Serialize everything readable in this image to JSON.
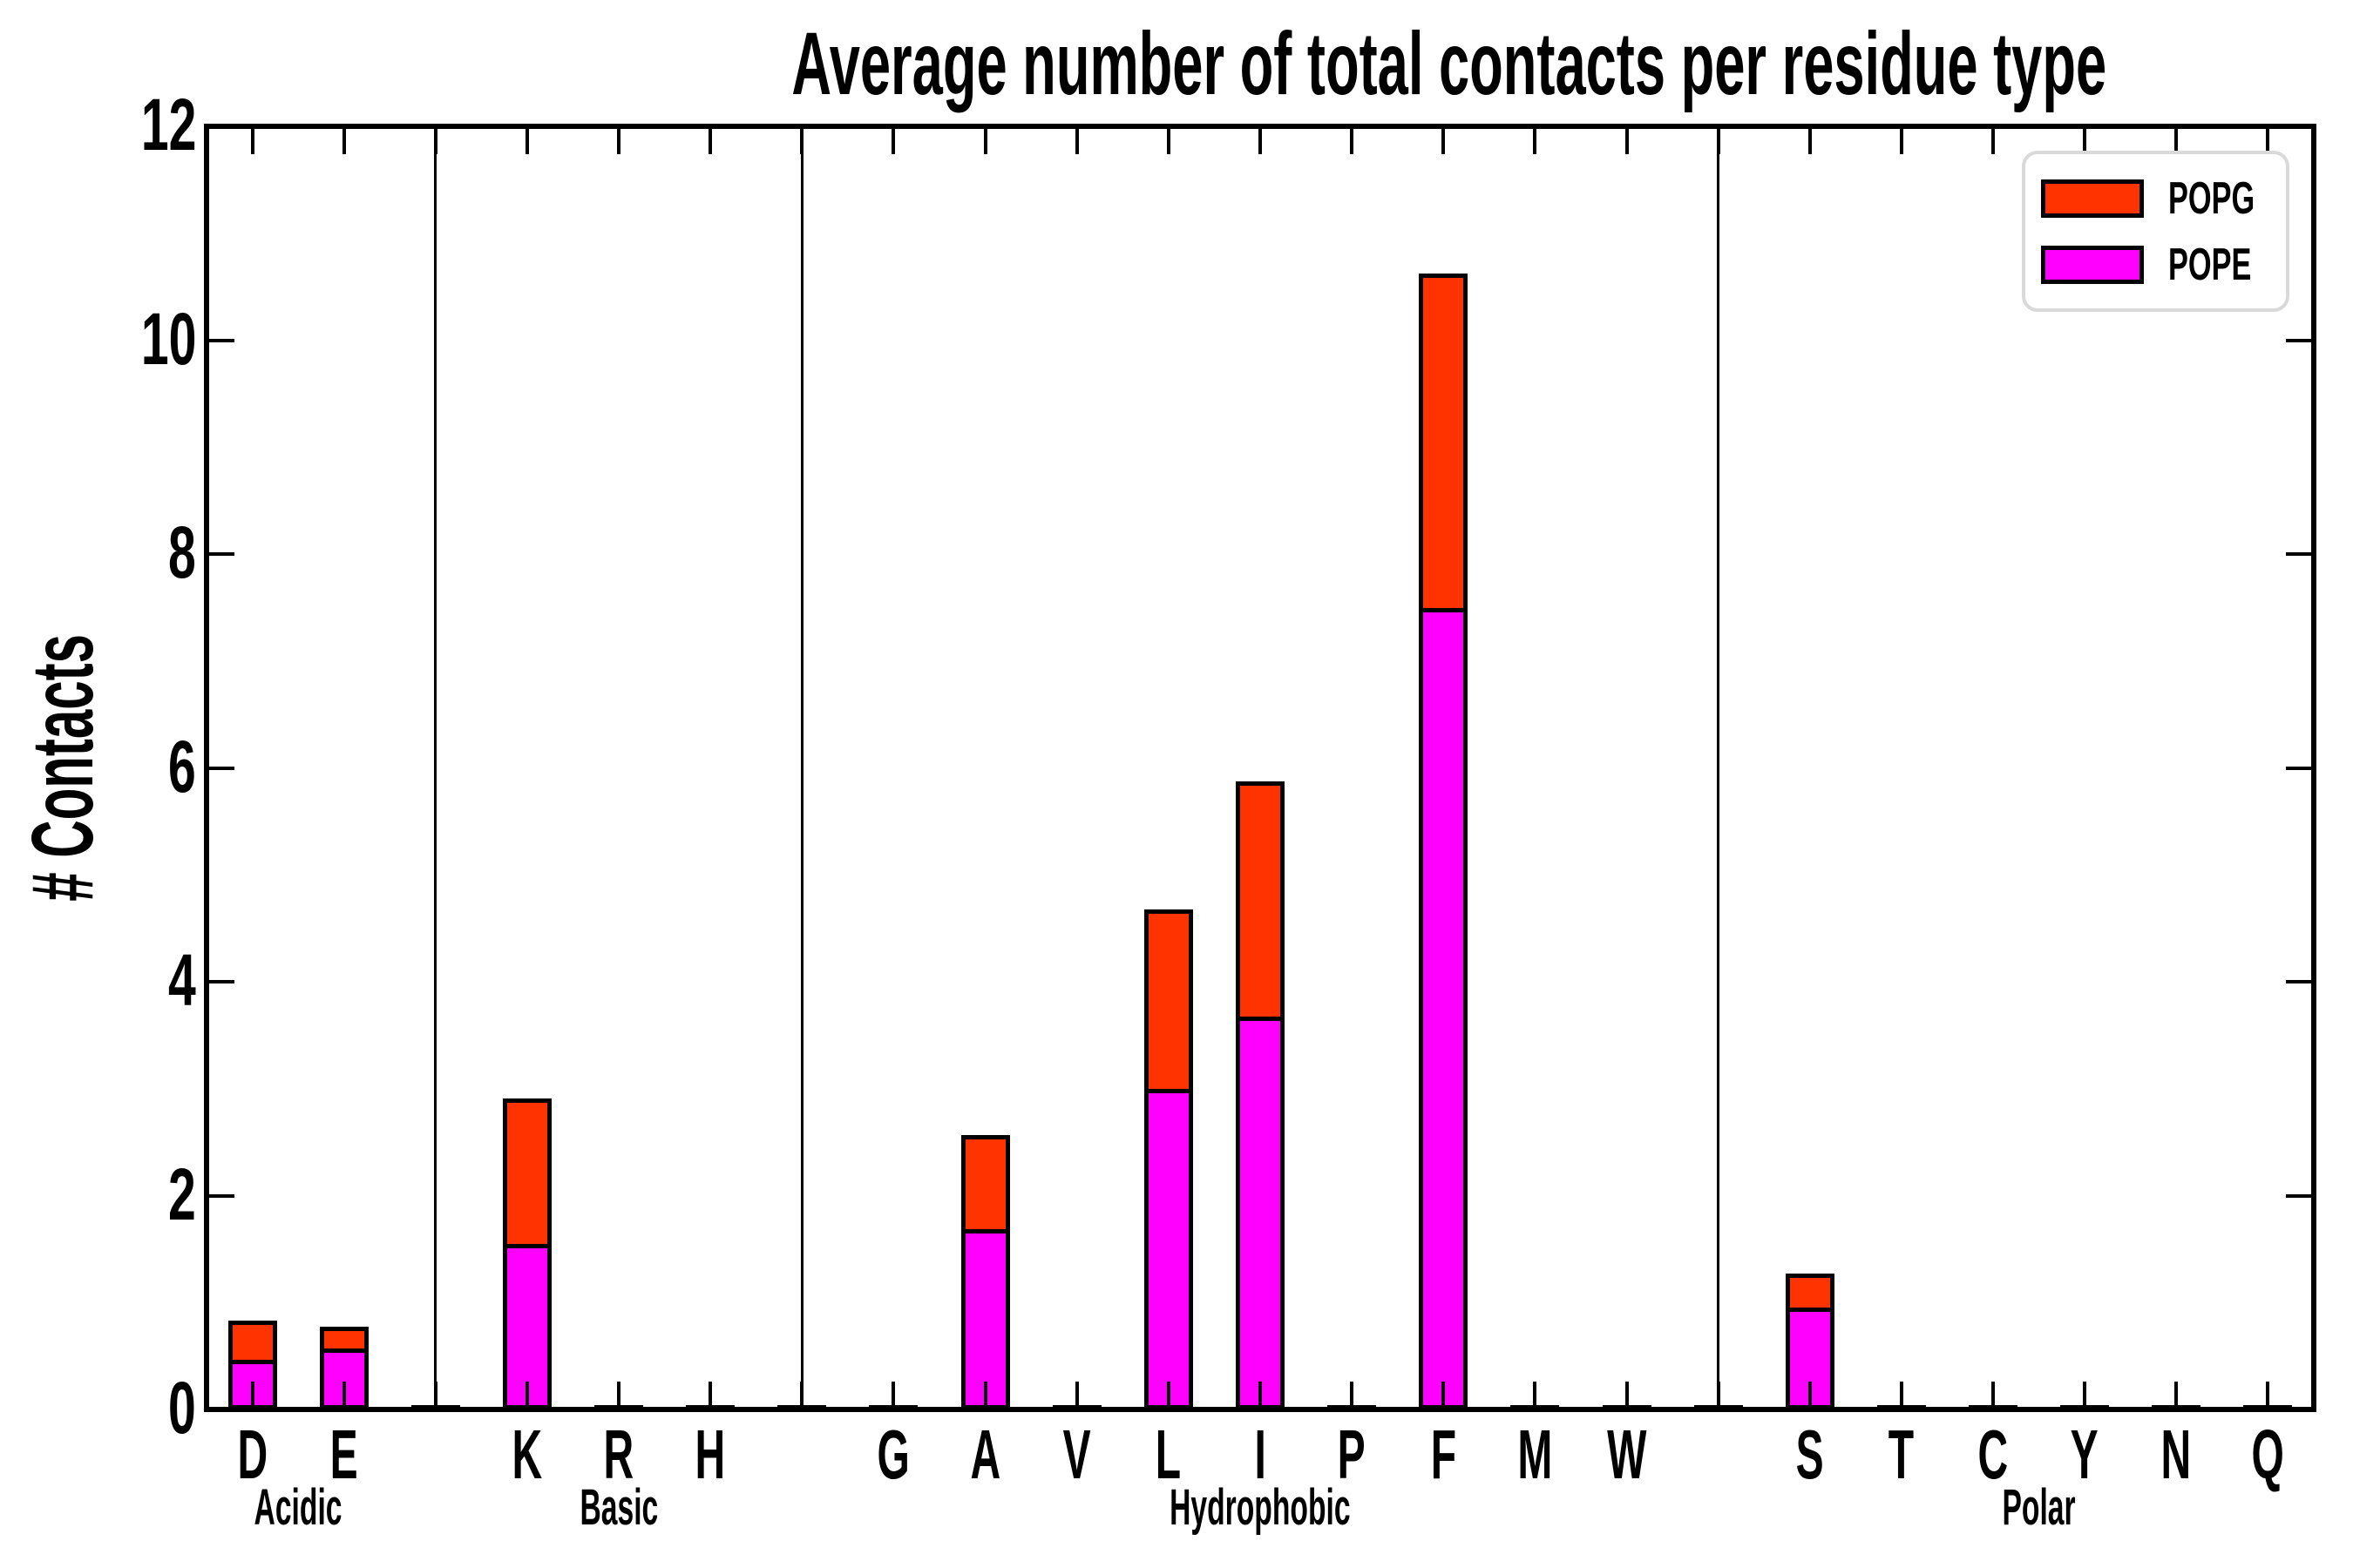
{
  "title": "Average number of total contacts per residue type",
  "y_axis": {
    "label": "# Contacts",
    "ticks": [
      0,
      2,
      4,
      6,
      8,
      10,
      12
    ],
    "range": [
      0,
      12
    ]
  },
  "legend": {
    "position": "upper right",
    "items": [
      {
        "label": "POPG",
        "color": "#ff3300"
      },
      {
        "label": "POPE",
        "color": "#ff00ff"
      }
    ]
  },
  "colors": {
    "popg": "#ff3300",
    "pope": "#ff00ff",
    "bar_edge": "#000000",
    "axis": "#000000",
    "background": "#ffffff",
    "legend_border": "#d9d9d9"
  },
  "chart_data": {
    "type": "bar",
    "stacked": true,
    "title": "Average number of total contacts per residue type",
    "xlabel": "",
    "ylabel": "# Contacts",
    "ylim": [
      0,
      12
    ],
    "yticks": [
      0,
      2,
      4,
      6,
      8,
      10,
      12
    ],
    "grid": false,
    "legend_position": "upper right",
    "group_separators": true,
    "categories": [
      "D",
      "E",
      "K",
      "R",
      "H",
      "G",
      "A",
      "V",
      "L",
      "I",
      "P",
      "F",
      "M",
      "W",
      "S",
      "T",
      "C",
      "Y",
      "N",
      "Q"
    ],
    "groups": [
      {
        "label": "Acidic",
        "categories": [
          "D",
          "E"
        ]
      },
      {
        "label": "Basic",
        "categories": [
          "K",
          "R",
          "H"
        ]
      },
      {
        "label": "Hydrophobic",
        "categories": [
          "G",
          "A",
          "V",
          "L",
          "I",
          "P",
          "F",
          "M",
          "W"
        ]
      },
      {
        "label": "Polar",
        "categories": [
          "S",
          "T",
          "C",
          "Y",
          "N",
          "Q"
        ]
      }
    ],
    "series": [
      {
        "name": "POPE",
        "color": "#ff00ff",
        "values": [
          0.46,
          0.57,
          1.55,
          0.01,
          0.01,
          0.01,
          1.69,
          0.01,
          3.0,
          3.67,
          0.01,
          7.49,
          0.01,
          0.01,
          0.95,
          0.01,
          0.01,
          0.01,
          0.01,
          0.01
        ]
      },
      {
        "name": "POPG",
        "color": "#ff3300",
        "values": [
          0.37,
          0.2,
          1.36,
          0.01,
          0.01,
          0.01,
          0.88,
          0.01,
          1.68,
          2.2,
          0.01,
          3.13,
          0.01,
          0.01,
          0.32,
          0.01,
          0.01,
          0.01,
          0.01,
          0.01
        ]
      }
    ]
  }
}
